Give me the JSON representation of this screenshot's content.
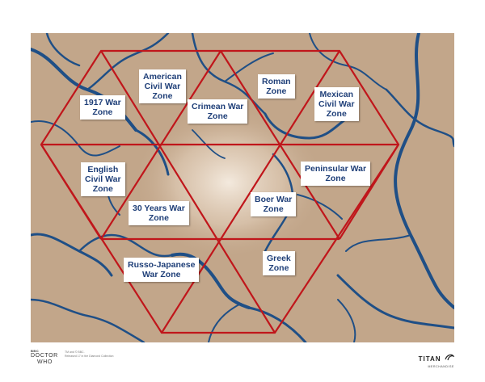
{
  "map": {
    "zones": [
      {
        "id": "1917",
        "lines": [
          "1917 War",
          "Zone"
        ]
      },
      {
        "id": "american-civil",
        "lines": [
          "American",
          "Civil War",
          "Zone"
        ]
      },
      {
        "id": "crimean",
        "lines": [
          "Crimean War",
          "Zone"
        ]
      },
      {
        "id": "roman",
        "lines": [
          "Roman",
          "Zone"
        ]
      },
      {
        "id": "mexican-civil",
        "lines": [
          "Mexican",
          "Civil War",
          "Zone"
        ]
      },
      {
        "id": "english-civil",
        "lines": [
          "English",
          "Civil War",
          "Zone"
        ]
      },
      {
        "id": "peninsular",
        "lines": [
          "Peninsular War",
          "Zone"
        ]
      },
      {
        "id": "30-years",
        "lines": [
          "30 Years War",
          "Zone"
        ]
      },
      {
        "id": "boer",
        "lines": [
          "Boer War",
          "Zone"
        ]
      },
      {
        "id": "russo-japanese",
        "lines": [
          "Russo-Japanese",
          "War Zone"
        ]
      },
      {
        "id": "greek",
        "lines": [
          "Greek",
          "Zone"
        ]
      }
    ],
    "colors": {
      "land": "#c2a68a",
      "river": "#1f4f86",
      "grid": "#c0161b",
      "label_text": "#1f3f78"
    }
  },
  "footer": {
    "bbc": "BBC",
    "logo_line1": "DOCTOR",
    "logo_line2": "WHO",
    "copyright_line1": "TM and © BBC.",
    "copyright_line2": "Released 17 in the Diamond Collection",
    "titan": "TITAN",
    "merchandise": "MERCHANDISE"
  }
}
